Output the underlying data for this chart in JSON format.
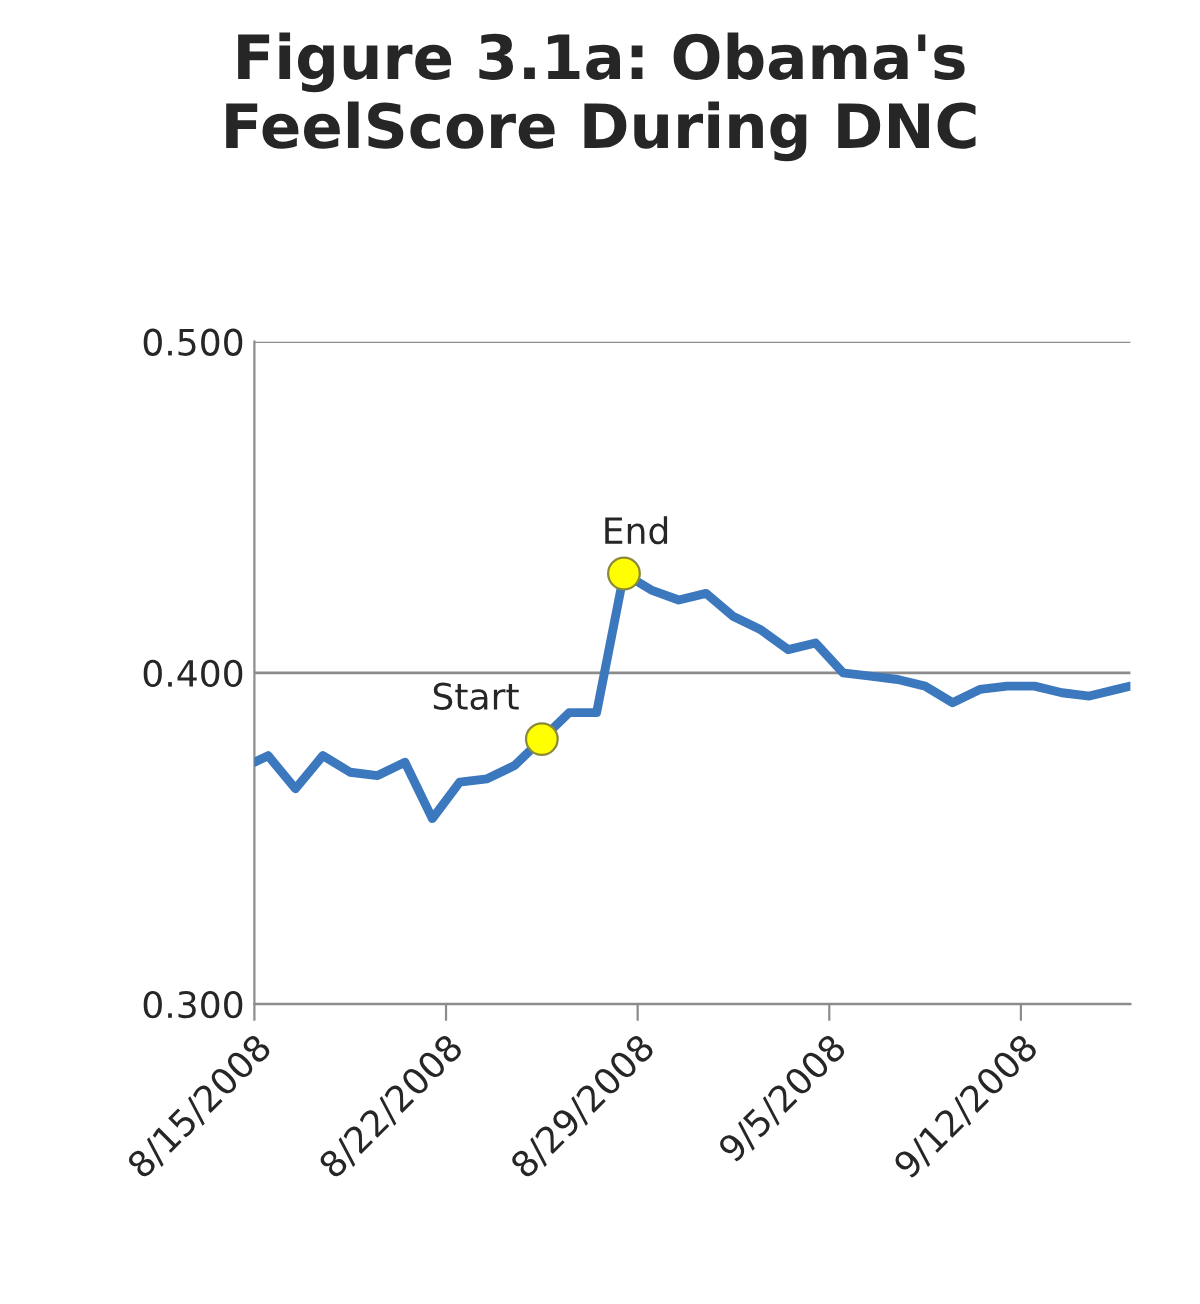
{
  "chart_data": {
    "type": "line",
    "title": "Figure 3.1a: Obama's\nFeelScore During DNC",
    "series": [
      {
        "color": "#3c78be",
        "x": [
          "2008-08-15T00:00",
          "2008-08-15T12:00",
          "2008-08-16T12:00",
          "2008-08-17T12:00",
          "2008-08-18T12:00",
          "2008-08-19T12:00",
          "2008-08-20T12:00",
          "2008-08-21T12:00",
          "2008-08-22T12:00",
          "2008-08-23T12:00",
          "2008-08-24T12:00",
          "2008-08-25T12:00",
          "2008-08-26T12:00",
          "2008-08-27T12:00",
          "2008-08-28T12:00",
          "2008-08-29T12:00",
          "2008-08-30T12:00",
          "2008-08-31T12:00",
          "2008-09-01T12:00",
          "2008-09-02T12:00",
          "2008-09-03T12:00",
          "2008-09-04T12:00",
          "2008-09-05T12:00",
          "2008-09-06T12:00",
          "2008-09-07T12:00",
          "2008-09-08T12:00",
          "2008-09-09T12:00",
          "2008-09-10T12:00",
          "2008-09-11T12:00",
          "2008-09-12T12:00",
          "2008-09-13T12:00",
          "2008-09-14T12:00",
          "2008-09-15T12:00",
          "2008-09-16T00:00"
        ],
        "values": [
          0.373,
          0.375,
          0.365,
          0.375,
          0.37,
          0.369,
          0.373,
          0.356,
          0.367,
          0.368,
          0.372,
          0.38,
          0.388,
          0.388,
          0.43,
          0.425,
          0.422,
          0.424,
          0.417,
          0.413,
          0.407,
          0.409,
          0.4,
          0.399,
          0.398,
          0.396,
          0.391,
          0.395,
          0.396,
          0.396,
          0.394,
          0.393,
          0.395,
          0.396
        ]
      },
      {
        "type": "scatter",
        "color": "#ffff00",
        "marker": "circle",
        "x": [
          "2008-08-25T12:00",
          "2008-08-28T12:00"
        ],
        "values": [
          0.38,
          0.43
        ]
      }
    ],
    "annotations": [
      {
        "text": "Start",
        "x": "2008-08-25T12:00",
        "y": 0.38
      },
      {
        "text": "End",
        "x": "2008-08-28T12:00",
        "y": 0.43
      }
    ],
    "xlim": [
      "2008-08-15",
      "2008-09-16"
    ],
    "xticks": [
      {
        "value": "2008-08-15",
        "label": "8/15/2008"
      },
      {
        "value": "2008-08-22",
        "label": "8/22/2008"
      },
      {
        "value": "2008-08-29",
        "label": "8/29/2008"
      },
      {
        "value": "2008-09-05",
        "label": "9/5/2008"
      },
      {
        "value": "2008-09-12",
        "label": "9/12/2008"
      }
    ],
    "ylim": [
      0.3,
      0.5
    ],
    "yticks": [
      {
        "value": 0.3,
        "label": "0.300"
      },
      {
        "value": 0.4,
        "label": "0.400"
      },
      {
        "value": 0.5,
        "label": "0.500"
      }
    ],
    "grid": "y",
    "legend": false
  }
}
